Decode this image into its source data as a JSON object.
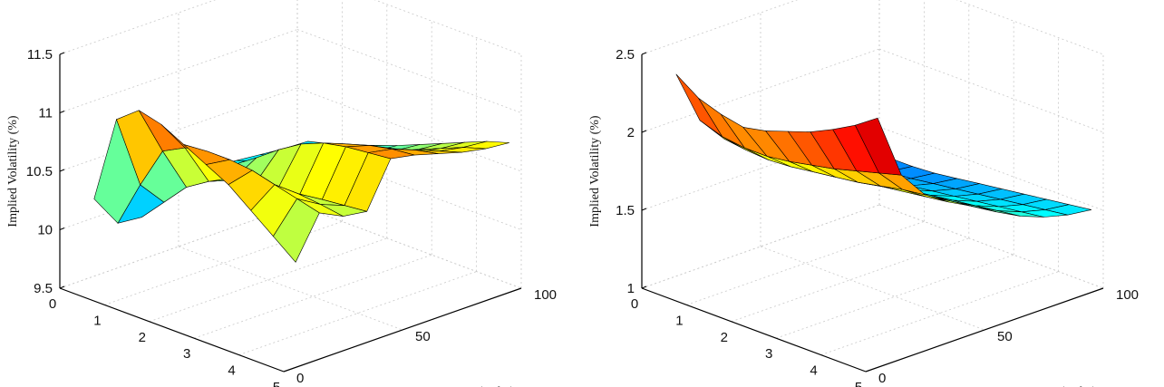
{
  "chart_data": [
    {
      "type": "surface",
      "title": "",
      "xlabel": "",
      "ylabel": "Moneyness (Delta)",
      "zlabel": "Implied Volatility (%)",
      "xlim": [
        0,
        5
      ],
      "ylim": [
        0,
        100
      ],
      "zlim": [
        9.5,
        11.5
      ],
      "x_ticks": [
        "0",
        "1",
        "2",
        "3",
        "4",
        "5"
      ],
      "y_ticks": [
        "0",
        "50",
        "100"
      ],
      "z_ticks": [
        "9.5",
        "10",
        "10.5",
        "11",
        "11.5"
      ],
      "grid": true,
      "colormap": "jet",
      "x": [
        0.5,
        1,
        1.5,
        2,
        2.5,
        3,
        3.5,
        4,
        4.5,
        5
      ],
      "y": [
        5,
        15,
        25,
        35,
        45,
        55,
        65,
        75,
        85,
        95
      ],
      "z": [
        [
          10.3,
          10.02,
          10.0,
          10.12,
          10.2,
          10.22,
          10.2,
          10.18,
          10.16,
          10.15
        ],
        [
          11.05,
          10.42,
          10.2,
          10.28,
          10.32,
          10.3,
          10.26,
          10.24,
          10.22,
          10.2
        ],
        [
          11.2,
          10.78,
          10.4,
          10.4,
          10.45,
          10.4,
          10.34,
          10.3,
          10.28,
          10.26
        ],
        [
          11.15,
          10.88,
          10.52,
          10.46,
          10.58,
          10.5,
          10.42,
          10.38,
          10.35,
          10.33
        ],
        [
          11.05,
          10.92,
          10.62,
          10.5,
          10.72,
          10.62,
          10.52,
          10.46,
          10.42,
          10.4
        ],
        [
          10.95,
          10.92,
          10.68,
          10.52,
          10.84,
          10.74,
          10.62,
          10.54,
          10.5,
          10.48
        ],
        [
          10.85,
          10.9,
          10.7,
          10.55,
          10.92,
          10.84,
          10.72,
          10.62,
          10.58,
          10.56
        ],
        [
          10.7,
          10.85,
          10.7,
          10.58,
          10.96,
          10.9,
          10.8,
          10.7,
          10.66,
          10.64
        ],
        [
          10.55,
          10.8,
          10.68,
          10.6,
          10.98,
          10.94,
          10.86,
          10.78,
          10.74,
          10.72
        ],
        [
          10.4,
          10.75,
          10.65,
          10.62,
          11.0,
          10.96,
          10.9,
          10.84,
          10.8,
          10.78
        ]
      ]
    },
    {
      "type": "surface",
      "title": "",
      "xlabel": "",
      "ylabel": "Moneyness (Delta)",
      "zlabel": "Implied Volatility (%)",
      "xlim": [
        0,
        5
      ],
      "ylim": [
        0,
        100
      ],
      "zlim": [
        1,
        2.5
      ],
      "x_ticks": [
        "0",
        "1",
        "2",
        "3",
        "4",
        "5"
      ],
      "y_ticks": [
        "0",
        "50",
        "100"
      ],
      "z_ticks": [
        "1",
        "1.5",
        "2",
        "2.5"
      ],
      "grid": true,
      "colormap": "jet",
      "x": [
        0.5,
        1,
        1.5,
        2,
        2.5,
        3,
        3.5,
        4,
        4.5,
        5
      ],
      "y": [
        5,
        15,
        25,
        35,
        45,
        55,
        65,
        75,
        85,
        95
      ],
      "z": [
        [
          2.4,
          2.05,
          1.88,
          1.8,
          1.72,
          1.62,
          1.52,
          1.45,
          1.4,
          1.38
        ],
        [
          2.3,
          2.0,
          1.86,
          1.78,
          1.7,
          1.6,
          1.51,
          1.44,
          1.4,
          1.38
        ],
        [
          2.25,
          1.98,
          1.85,
          1.77,
          1.7,
          1.6,
          1.51,
          1.45,
          1.41,
          1.39
        ],
        [
          2.22,
          1.98,
          1.86,
          1.78,
          1.71,
          1.61,
          1.53,
          1.47,
          1.43,
          1.41
        ],
        [
          2.25,
          2.0,
          1.88,
          1.8,
          1.72,
          1.63,
          1.55,
          1.49,
          1.45,
          1.43
        ],
        [
          2.3,
          2.03,
          1.9,
          1.82,
          1.74,
          1.65,
          1.57,
          1.51,
          1.47,
          1.45
        ],
        [
          2.35,
          2.06,
          1.92,
          1.84,
          1.76,
          1.67,
          1.59,
          1.53,
          1.49,
          1.47
        ],
        [
          2.42,
          2.1,
          1.95,
          1.86,
          1.78,
          1.69,
          1.61,
          1.55,
          1.51,
          1.49
        ],
        [
          2.5,
          2.14,
          1.98,
          1.88,
          1.8,
          1.71,
          1.63,
          1.57,
          1.53,
          1.51
        ],
        [
          2.6,
          2.18,
          2.0,
          1.9,
          1.82,
          1.73,
          1.65,
          1.59,
          1.55,
          1.53
        ]
      ]
    }
  ]
}
